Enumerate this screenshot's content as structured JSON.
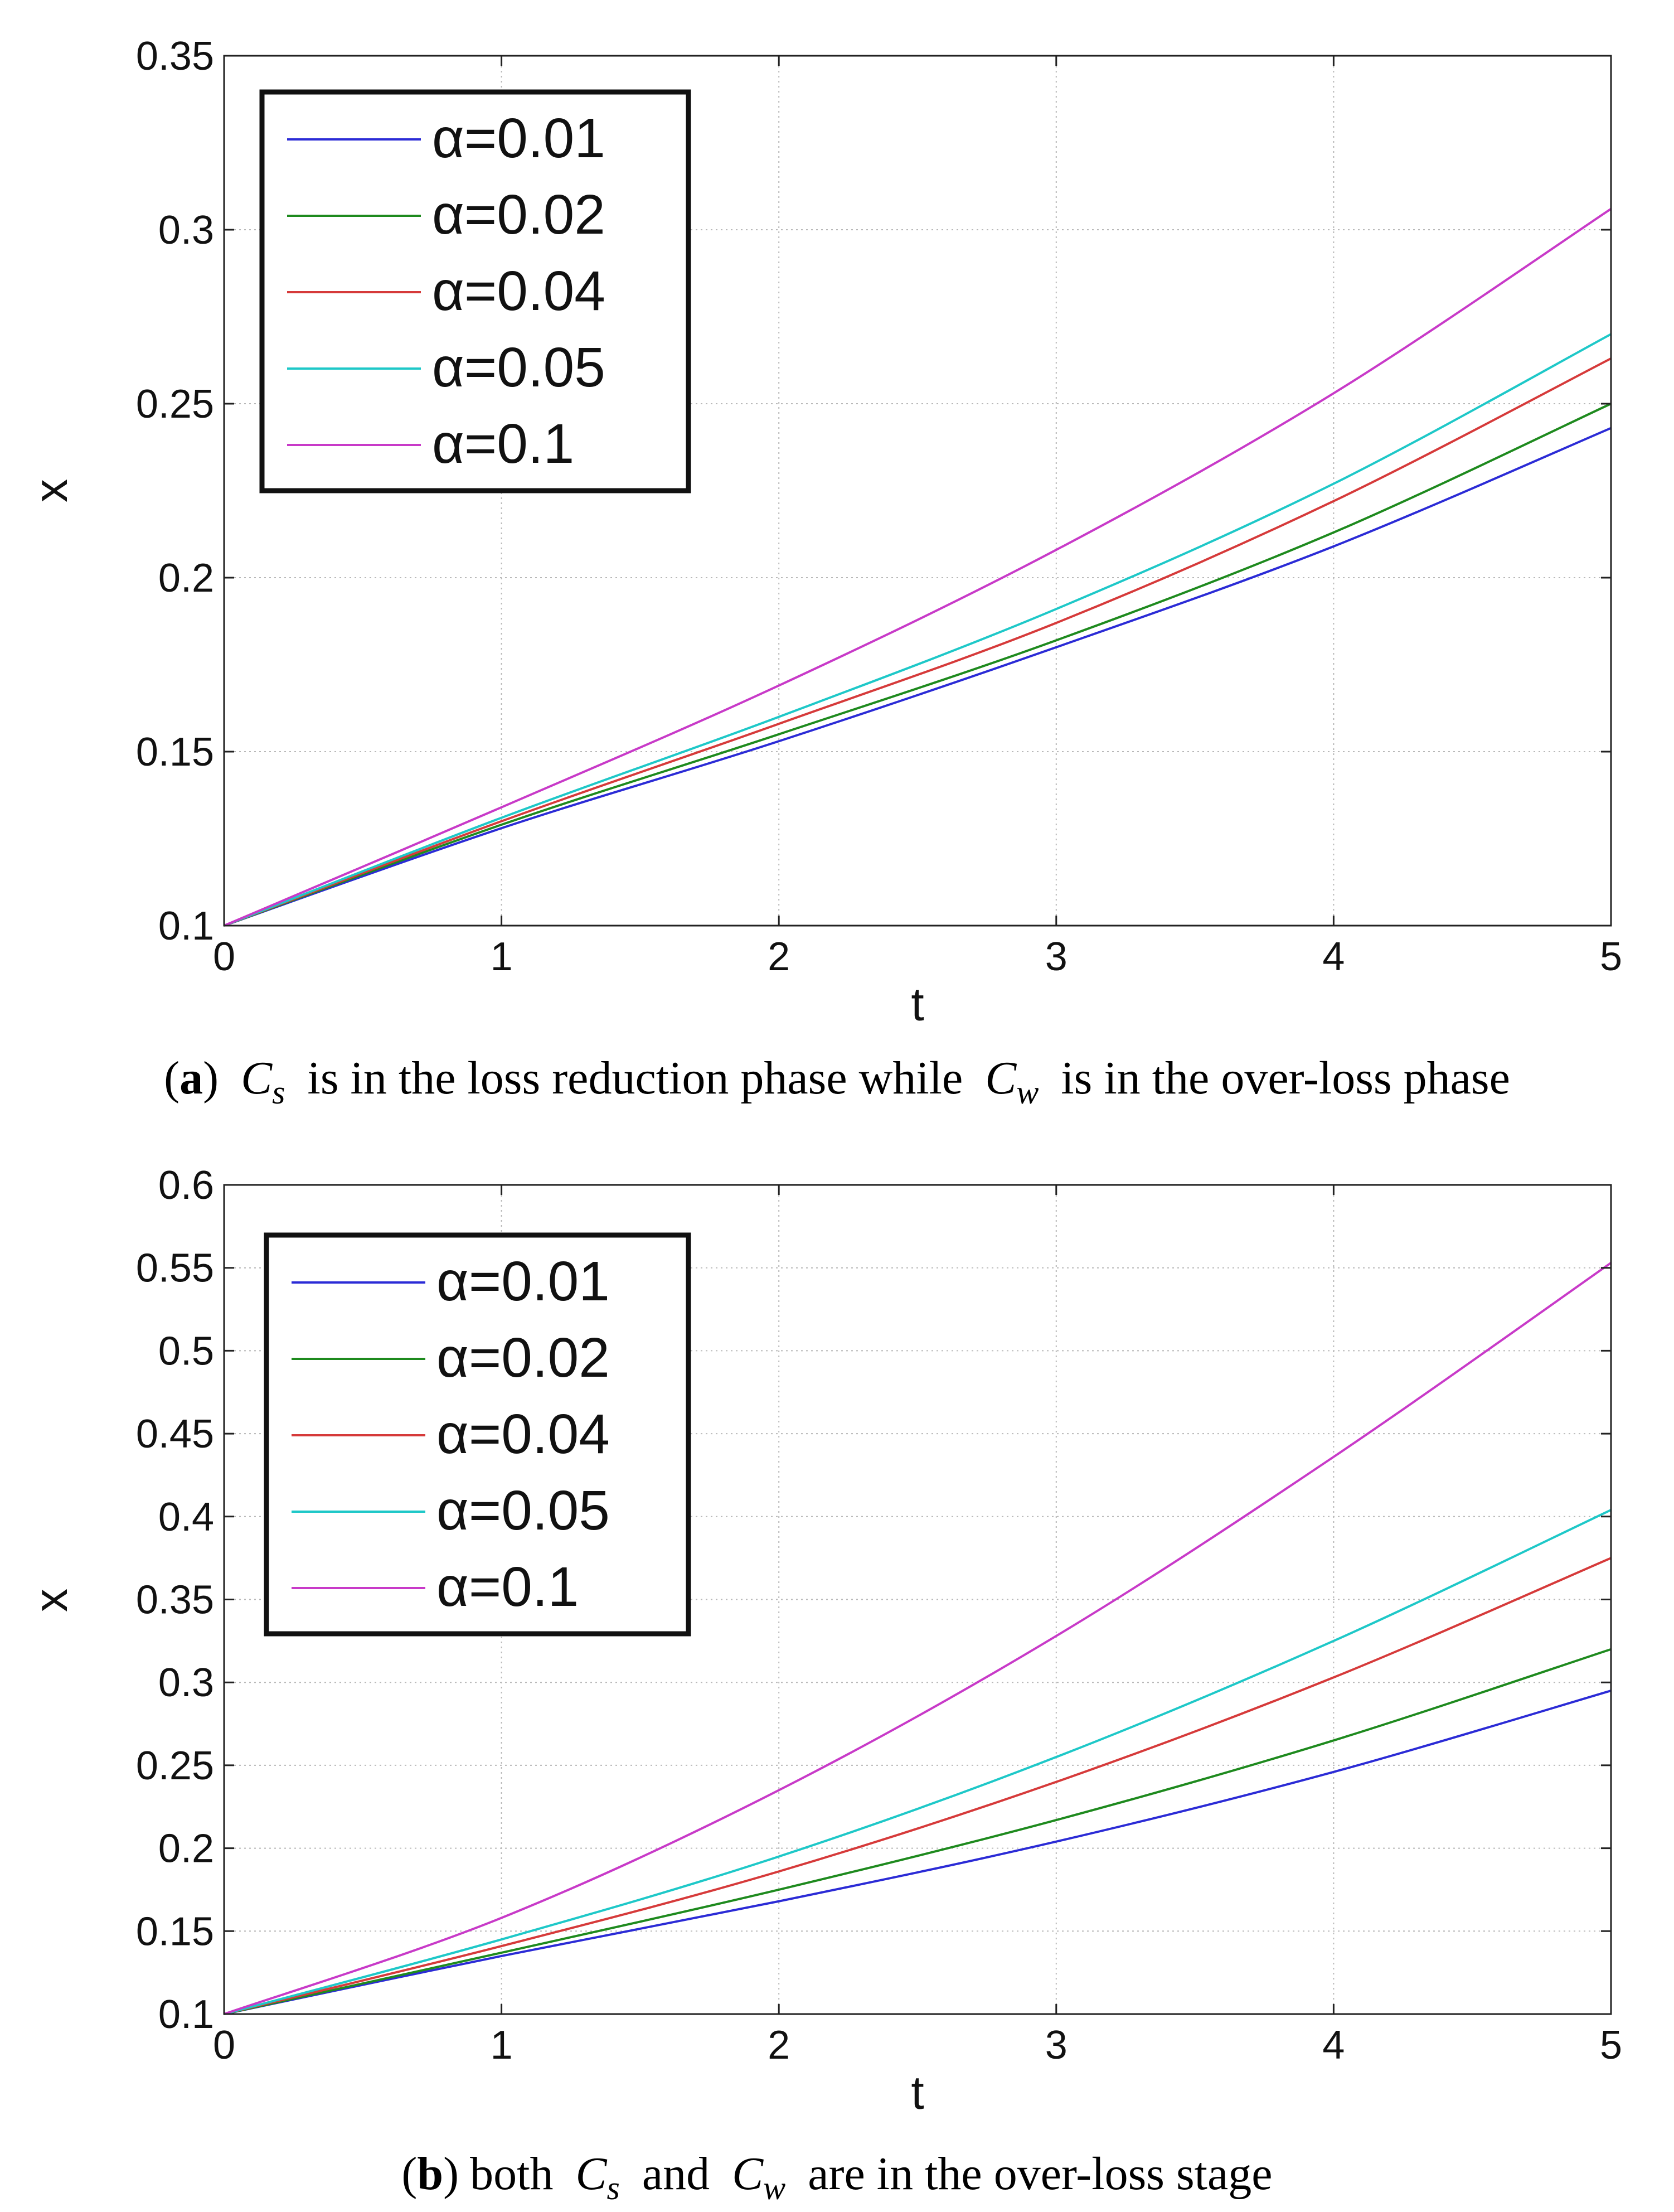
{
  "figures": [
    {
      "id": "a",
      "caption": {
        "label": "a",
        "sym1": "C",
        "sub1": "s",
        "text1": "is in the loss reduction phase while",
        "sym2": "C",
        "sub2": "w",
        "text2": "is in the over-loss phase"
      }
    },
    {
      "id": "b",
      "caption": {
        "label": "b",
        "text0": "both",
        "sym1": "C",
        "sub1": "s",
        "text1": "and",
        "sym2": "C",
        "sub2": "w",
        "text2": "are in the over-loss stage"
      }
    }
  ],
  "chart_data": [
    {
      "type": "line",
      "title": "",
      "xlabel": "t",
      "ylabel": "x",
      "xlim": [
        0,
        5
      ],
      "ylim": [
        0.1,
        0.35
      ],
      "grid": true,
      "legend_position": "top-left",
      "x_ticks": [
        "0",
        "1",
        "2",
        "3",
        "4",
        "5"
      ],
      "y_ticks": [
        "0.1",
        "0.15",
        "0.2",
        "0.25",
        "0.3",
        "0.35"
      ],
      "x": [
        0,
        1,
        2,
        3,
        4,
        5
      ],
      "series": [
        {
          "name": "α=0.01",
          "color": "#2b2bd6",
          "values": [
            0.1,
            0.128,
            0.153,
            0.18,
            0.209,
            0.243
          ]
        },
        {
          "name": "α=0.02",
          "color": "#1e8a1e",
          "values": [
            0.1,
            0.129,
            0.155,
            0.182,
            0.213,
            0.25
          ]
        },
        {
          "name": "α=0.04",
          "color": "#d63a3a",
          "values": [
            0.1,
            0.13,
            0.158,
            0.187,
            0.222,
            0.263
          ]
        },
        {
          "name": "α=0.05",
          "color": "#1ec8c8",
          "values": [
            0.1,
            0.131,
            0.16,
            0.191,
            0.227,
            0.27
          ]
        },
        {
          "name": "α=0.1",
          "color": "#c83ac8",
          "values": [
            0.1,
            0.134,
            0.169,
            0.208,
            0.253,
            0.306
          ]
        }
      ]
    },
    {
      "type": "line",
      "title": "",
      "xlabel": "t",
      "ylabel": "x",
      "xlim": [
        0,
        5
      ],
      "ylim": [
        0.1,
        0.6
      ],
      "grid": true,
      "legend_position": "top-left",
      "x_ticks": [
        "0",
        "1",
        "2",
        "3",
        "4",
        "5"
      ],
      "y_ticks": [
        "0.1",
        "0.15",
        "0.2",
        "0.25",
        "0.3",
        "0.35",
        "0.4",
        "0.45",
        "0.5",
        "0.55",
        "0.6"
      ],
      "x": [
        0,
        1,
        2,
        3,
        4,
        5
      ],
      "series": [
        {
          "name": "α=0.01",
          "color": "#2b2bd6",
          "values": [
            0.1,
            0.135,
            0.168,
            0.204,
            0.246,
            0.295
          ]
        },
        {
          "name": "α=0.02",
          "color": "#1e8a1e",
          "values": [
            0.1,
            0.137,
            0.175,
            0.217,
            0.265,
            0.32
          ]
        },
        {
          "name": "α=0.04",
          "color": "#d63a3a",
          "values": [
            0.1,
            0.141,
            0.186,
            0.24,
            0.303,
            0.375
          ]
        },
        {
          "name": "α=0.05",
          "color": "#1ec8c8",
          "values": [
            0.1,
            0.145,
            0.195,
            0.255,
            0.325,
            0.404
          ]
        },
        {
          "name": "α=0.1",
          "color": "#c83ac8",
          "values": [
            0.1,
            0.158,
            0.235,
            0.328,
            0.436,
            0.553
          ]
        }
      ]
    }
  ]
}
